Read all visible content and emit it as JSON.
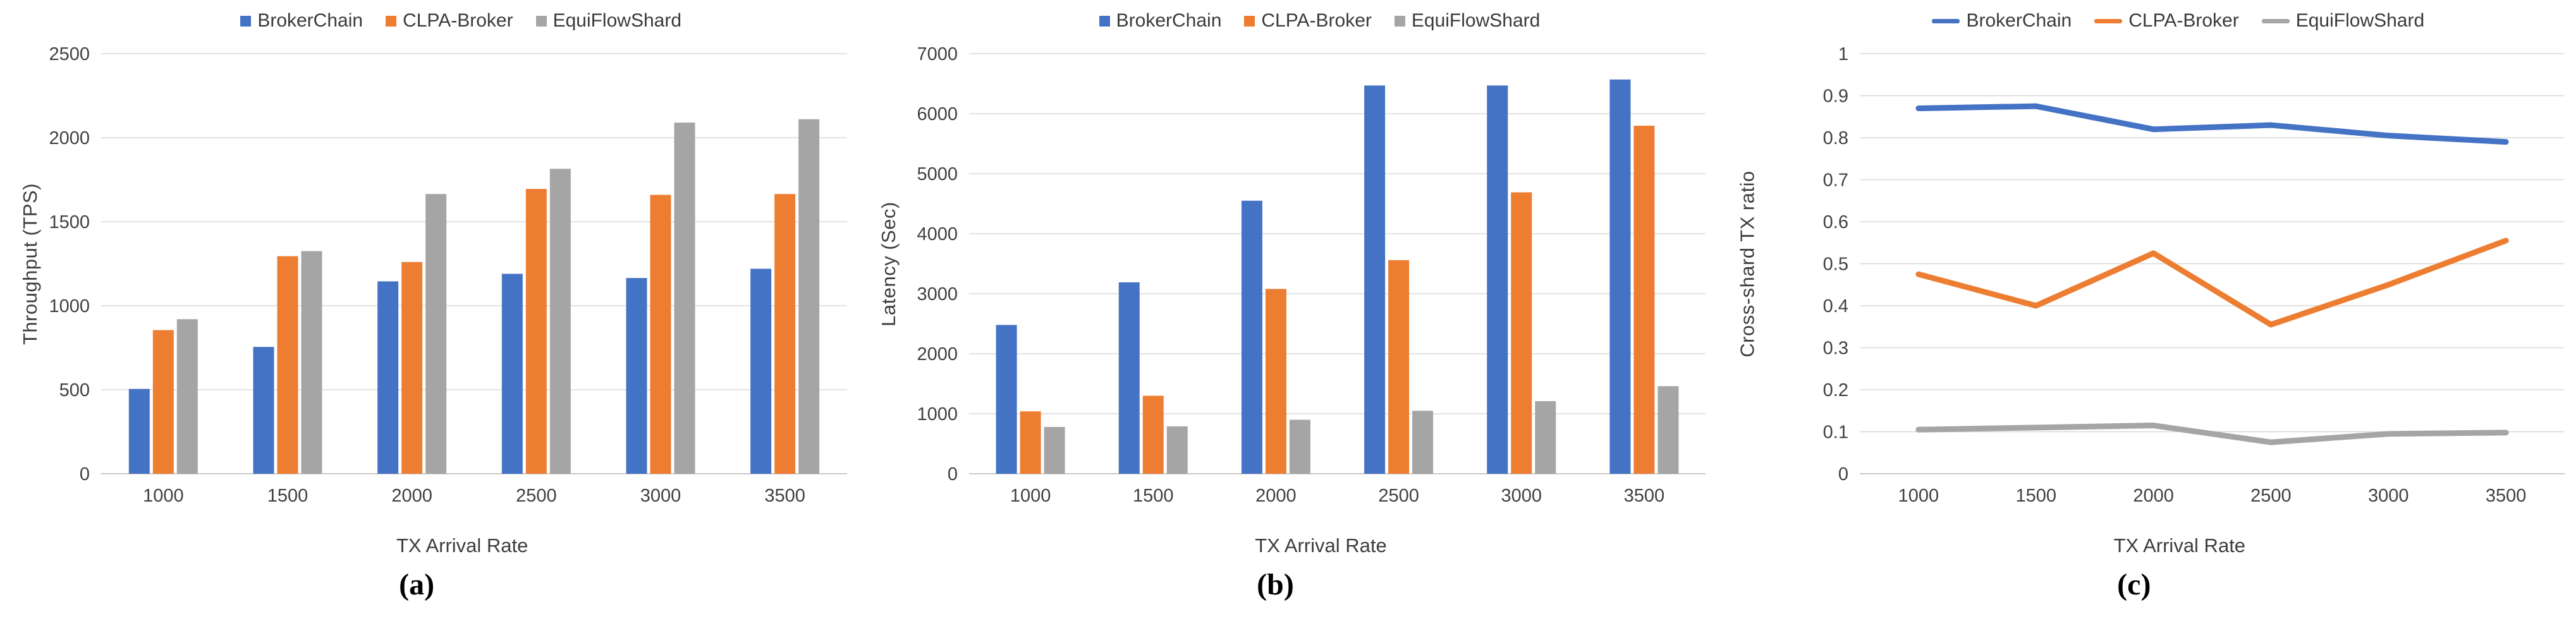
{
  "figure": {
    "background": "#ffffff",
    "gridline_color": "#d9d9d9",
    "axis_line_color": "#c9c9c9",
    "text_color": "#3d3d3d",
    "series_colors": {
      "BrokerChain": "#4472C4",
      "CLPA-Broker": "#ED7D31",
      "EquiFlowShard": "#A5A5A5"
    }
  },
  "chart_data": [
    {
      "id": "a",
      "type": "bar",
      "caption": "(a)",
      "xlabel": "TX Arrival Rate",
      "ylabel": "Throughput (TPS)",
      "categories": [
        "1000",
        "1500",
        "2000",
        "2500",
        "3000",
        "3500"
      ],
      "yticks": [
        0,
        500,
        1000,
        1500,
        2000,
        2500
      ],
      "ymax": 2500,
      "grid": true,
      "legend_position": "top",
      "legend_marker": "square",
      "series": [
        {
          "name": "BrokerChain",
          "color": "#4472C4",
          "values": [
            505,
            755,
            1145,
            1190,
            1165,
            1220
          ]
        },
        {
          "name": "CLPA-Broker",
          "color": "#ED7D31",
          "values": [
            855,
            1295,
            1260,
            1695,
            1660,
            1665
          ]
        },
        {
          "name": "EquiFlowShard",
          "color": "#A5A5A5",
          "values": [
            920,
            1325,
            1665,
            1815,
            2090,
            2110
          ]
        }
      ]
    },
    {
      "id": "b",
      "type": "bar",
      "caption": "(b)",
      "xlabel": "TX Arrival Rate",
      "ylabel": "Latency (Sec)",
      "categories": [
        "1000",
        "1500",
        "2000",
        "2500",
        "3000",
        "3500"
      ],
      "yticks": [
        0,
        1000,
        2000,
        3000,
        4000,
        5000,
        6000,
        7000
      ],
      "ymax": 7000,
      "grid": true,
      "legend_position": "top",
      "legend_marker": "square",
      "series": [
        {
          "name": "BrokerChain",
          "color": "#4472C4",
          "values": [
            2480,
            3190,
            4550,
            6470,
            6470,
            6570
          ]
        },
        {
          "name": "CLPA-Broker",
          "color": "#ED7D31",
          "values": [
            1040,
            1300,
            3080,
            3560,
            4690,
            5800
          ]
        },
        {
          "name": "EquiFlowShard",
          "color": "#A5A5A5",
          "values": [
            780,
            790,
            900,
            1050,
            1210,
            1460
          ]
        }
      ]
    },
    {
      "id": "c",
      "type": "line",
      "caption": "(c)",
      "xlabel": "TX Arrival Rate",
      "ylabel": "Cross-shard TX ratio",
      "categories": [
        "1000",
        "1500",
        "2000",
        "2500",
        "3000",
        "3500"
      ],
      "yticks": [
        0,
        0.1,
        0.2,
        0.3,
        0.4,
        0.5,
        0.6,
        0.7,
        0.8,
        0.9,
        1
      ],
      "ymax": 1,
      "grid": true,
      "legend_position": "top",
      "legend_marker": "line",
      "series": [
        {
          "name": "BrokerChain",
          "color": "#4472C4",
          "values": [
            0.87,
            0.875,
            0.82,
            0.83,
            0.805,
            0.79
          ]
        },
        {
          "name": "CLPA-Broker",
          "color": "#ED7D31",
          "values": [
            0.475,
            0.4,
            0.525,
            0.355,
            0.45,
            0.555
          ]
        },
        {
          "name": "EquiFlowShard",
          "color": "#A5A5A5",
          "values": [
            0.105,
            0.11,
            0.115,
            0.075,
            0.095,
            0.098
          ]
        }
      ]
    }
  ]
}
